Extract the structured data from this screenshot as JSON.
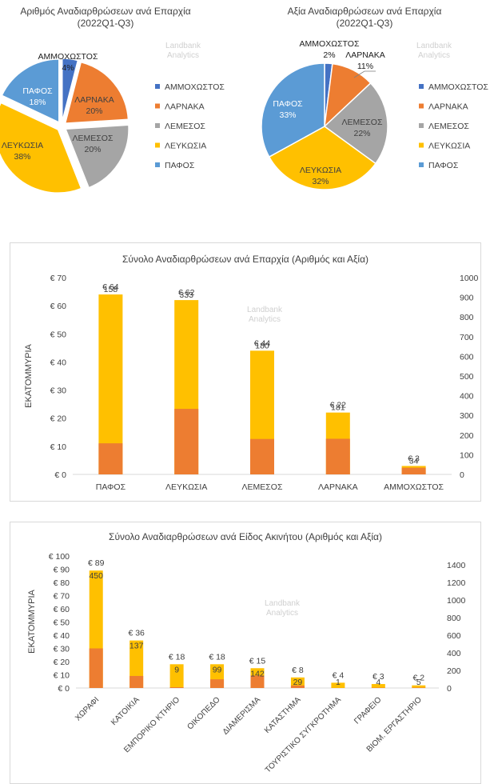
{
  "watermark": [
    "Landbank",
    "Analytics"
  ],
  "colors": {
    "ammochostos": "#4472c4",
    "larnaka": "#ed7d31",
    "lemesos": "#a5a5a5",
    "lefkosia": "#ffc000",
    "pafos": "#5b9bd5",
    "bar_value": "#ffc000",
    "bar_count": "#ed7d31",
    "text": "#404040",
    "grid": "#d9d9d9"
  },
  "chart_data": [
    {
      "type": "pie",
      "title": [
        "Αριθμός Αναδιαρθρώσεων ανά Επαρχία",
        "(2022Q1-Q3)"
      ],
      "slices": [
        {
          "key": "ammochostos",
          "label": "ΑΜΜΟΧΩΣΤΟΣ",
          "value": 4,
          "value_label": "4%"
        },
        {
          "key": "larnaka",
          "label": "ΛΑΡΝΑΚΑ",
          "value": 20,
          "value_label": "20%"
        },
        {
          "key": "lemesos",
          "label": "ΛΕΜΕΣΟΣ",
          "value": 20,
          "value_label": "20%"
        },
        {
          "key": "lefkosia",
          "label": "ΛΕΥΚΩΣΙΑ",
          "value": 38,
          "value_label": "38%"
        },
        {
          "key": "pafos",
          "label": "ΠΑΦΟΣ",
          "value": 18,
          "value_label": "18%"
        }
      ],
      "legend": [
        "ΑΜΜΟΧΩΣΤΟΣ",
        "ΛΑΡΝΑΚΑ",
        "ΛΕΜΕΣΟΣ",
        "ΛΕΥΚΩΣΙΑ",
        "ΠΑΦΟΣ"
      ],
      "legend_position": "right"
    },
    {
      "type": "pie",
      "title": [
        "Αξία Αναδιαρθρώσεων ανά Επαρχία",
        "(2022Q1-Q3)"
      ],
      "slices": [
        {
          "key": "ammochostos",
          "label": "ΑΜΜΟΧΩΣΤΟΣ",
          "value": 2,
          "value_label": "2%"
        },
        {
          "key": "larnaka",
          "label": "ΛΑΡΝΑΚΑ",
          "value": 11,
          "value_label": "11%"
        },
        {
          "key": "lemesos",
          "label": "ΛΕΜΕΣΟΣ",
          "value": 22,
          "value_label": "22%"
        },
        {
          "key": "lefkosia",
          "label": "ΛΕΥΚΩΣΙΑ",
          "value": 32,
          "value_label": "32%"
        },
        {
          "key": "pafos",
          "label": "ΠΑΦΟΣ",
          "value": 33,
          "value_label": "33%"
        }
      ],
      "legend": [
        "ΑΜΜΟΧΩΣΤΟΣ",
        "ΛΑΡΝΑΚΑ",
        "ΛΕΜΕΣΟΣ",
        "ΛΕΥΚΩΣΙΑ",
        "ΠΑΦΟΣ"
      ],
      "legend_position": "right"
    },
    {
      "type": "bar",
      "title": "Σύνολο Αναδιαρθρώσεων ανά Επαρχία (Αριθμός και Αξία)",
      "ylabel": "ΕΚΑΤΟΜΜΥΡΙΑ",
      "categories": [
        "ΠΑΦΟΣ",
        "ΛΕΥΚΩΣΙΑ",
        "ΛΕΜΕΣΟΣ",
        "ΛΑΡΝΑΚΑ",
        "ΑΜΜΟΧΩΣΤΟΣ"
      ],
      "series": [
        {
          "values": [
            64,
            62,
            44,
            22,
            3
          ],
          "labels": [
            "€ 64",
            "€ 62",
            "€ 44",
            "€ 22",
            "€ 3"
          ],
          "axis": "left"
        },
        {
          "values": [
            158,
            333,
            180,
            181,
            34
          ],
          "labels": [
            "158",
            "333",
            "180",
            "181",
            "34"
          ],
          "axis": "right"
        }
      ],
      "ylim": [
        0,
        70
      ],
      "yticks": [
        "€ 0",
        "€ 10",
        "€ 20",
        "€ 30",
        "€ 40",
        "€ 50",
        "€ 60",
        "€ 70"
      ],
      "y2lim": [
        0,
        1000
      ],
      "y2ticks": [
        "0",
        "100",
        "200",
        "300",
        "400",
        "500",
        "600",
        "700",
        "800",
        "900",
        "1000"
      ],
      "grid": false
    },
    {
      "type": "bar",
      "title": "Σύνολο Αναδιαρθρώσεων ανά Είδος Ακινήτου (Αριθμός και Αξία)",
      "ylabel": "ΕΚΑΤΟΜΜΥΡΙΑ",
      "categories": [
        "ΧΩΡΑΦΙ",
        "ΚΑΤΟΙΚΙΑ",
        "ΕΜΠΟΡΙΚΟ ΚΤΗΡΙΟ",
        "ΟΙΚΟΠΕΔΟ",
        "ΔΙΑΜΕΡΙΣΜΑ",
        "ΚΑΤΑΣΤΗΜΑ",
        "ΤΟΥΡΙΣΤΙΚΟ ΣΥΓΚΡΟΤΗΜΑ",
        "ΓΡΑΦΕΙΟ",
        "ΒΙΟΜ. ΕΡΓΑΣΤΗΡΙΟ"
      ],
      "series": [
        {
          "values": [
            89,
            36,
            18,
            18,
            15,
            8,
            4,
            3,
            2
          ],
          "labels": [
            "€ 89",
            "€ 36",
            "€ 18",
            "€ 18",
            "€ 15",
            "€ 8",
            "€ 4",
            "€ 3",
            "€ 2"
          ],
          "axis": "left"
        },
        {
          "values": [
            450,
            137,
            9,
            99,
            142,
            29,
            1,
            4,
            5
          ],
          "labels": [
            "450",
            "137",
            "9",
            "99",
            "142",
            "29",
            "1",
            "4",
            "5"
          ],
          "axis": "right"
        }
      ],
      "ylim": [
        0,
        100
      ],
      "yticks": [
        "€ 0",
        "€ 10",
        "€ 20",
        "€ 30",
        "€ 40",
        "€ 50",
        "€ 60",
        "€ 70",
        "€ 80",
        "€ 90",
        "€ 100"
      ],
      "y2lim": [
        0,
        1500
      ],
      "y2ticks": [
        "0",
        "200",
        "400",
        "600",
        "800",
        "1000",
        "1200",
        "1400"
      ],
      "grid": false
    }
  ]
}
